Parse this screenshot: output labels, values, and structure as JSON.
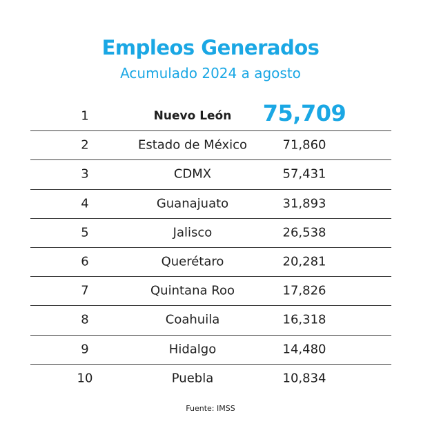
{
  "header": {
    "title": "Empleos Generados",
    "subtitle": "Acumulado 2024 a agosto"
  },
  "colors": {
    "accent": "#1aa7e4",
    "text": "#1e1e1e",
    "rule": "#3a3a3a"
  },
  "chart_data": {
    "type": "table",
    "title": "Empleos Generados",
    "subtitle": "Acumulado 2024 a agosto",
    "columns": [
      "",
      "",
      ""
    ],
    "rows": [
      {
        "rank": "1",
        "state": "Nuevo León",
        "value": "75,709"
      },
      {
        "rank": "2",
        "state": "Estado de México",
        "value": "71,860"
      },
      {
        "rank": "3",
        "state": "CDMX",
        "value": "57,431"
      },
      {
        "rank": "4",
        "state": "Guanajuato",
        "value": "31,893"
      },
      {
        "rank": "5",
        "state": "Jalisco",
        "value": "26,538"
      },
      {
        "rank": "6",
        "state": "Querétaro",
        "value": "20,281"
      },
      {
        "rank": "7",
        "state": "Quintana Roo",
        "value": "17,826"
      },
      {
        "rank": "8",
        "state": "Coahuila",
        "value": "16,318"
      },
      {
        "rank": "9",
        "state": "Hidalgo",
        "value": "14,480"
      },
      {
        "rank": "10",
        "state": "Puebla",
        "value": "10,834"
      }
    ],
    "highlighted_rank": "1"
  },
  "footer": {
    "source": "Fuente: IMSS"
  }
}
